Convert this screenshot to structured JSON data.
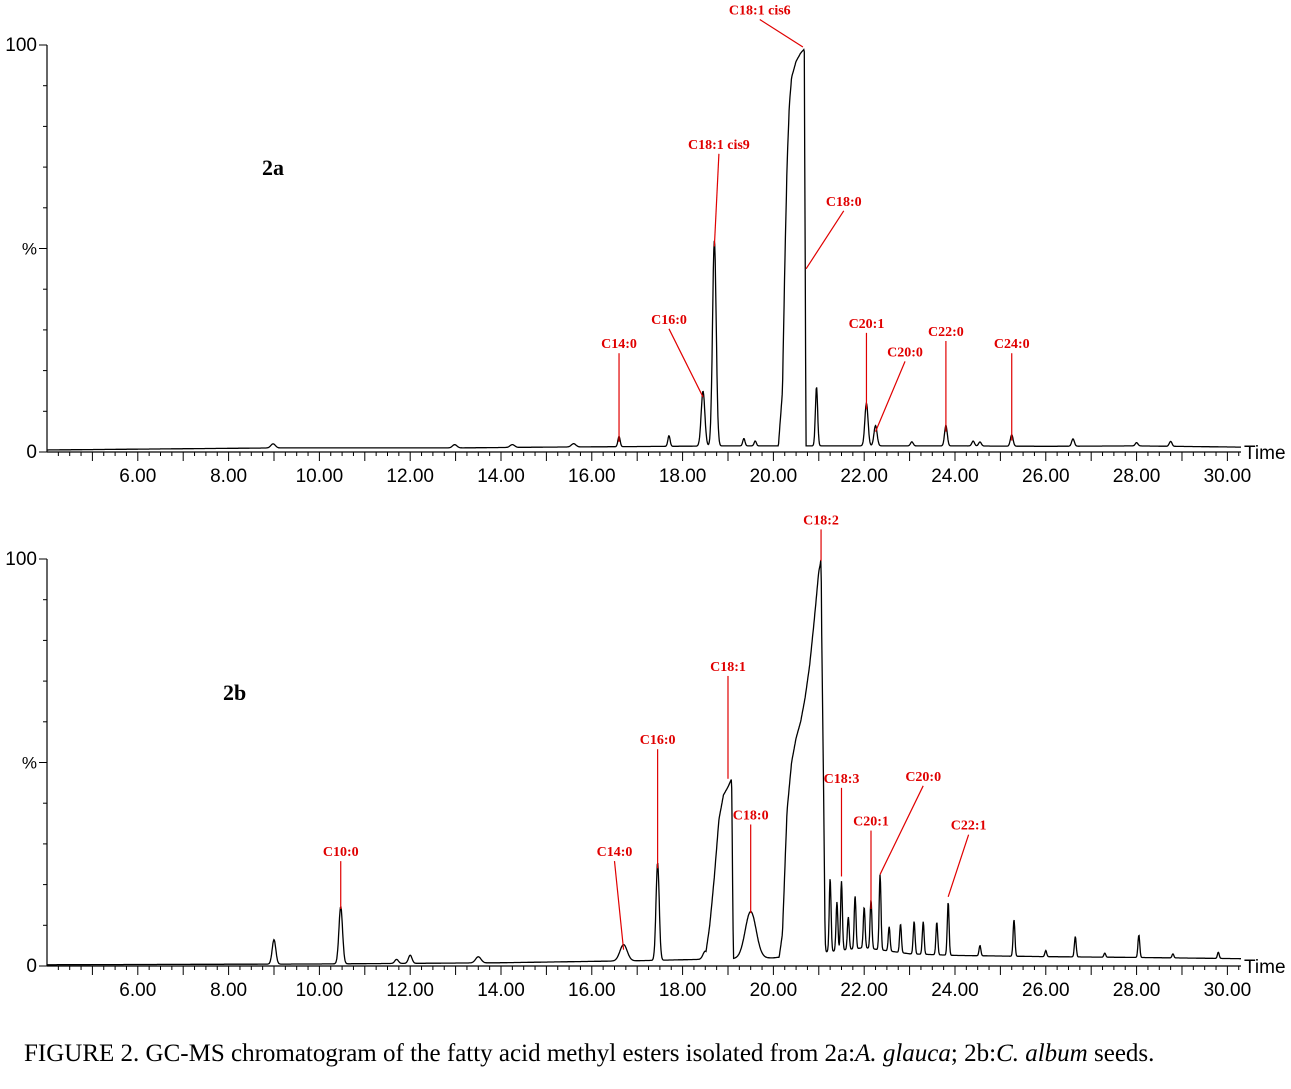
{
  "caption": {
    "prefix": "FIGURE 2. GC-MS chromatogram of the fatty acid methyl esters isolated from 2a:",
    "species_a": "A. glauca",
    "separator": "; 2b:",
    "species_b": "C. album",
    "suffix": " seeds."
  },
  "chart_data": [
    {
      "type": "line",
      "panel": "2a",
      "xlabel": "Time",
      "ylabel": "%",
      "xlim": [
        4.0,
        30.3
      ],
      "ylim": [
        0,
        100
      ],
      "y_ticks": [
        "0",
        "%",
        "100"
      ],
      "x_ticks": [
        "6.00",
        "8.00",
        "10.00",
        "12.00",
        "14.00",
        "16.00",
        "18.00",
        "20.00",
        "22.00",
        "24.00",
        "26.00",
        "28.00",
        "30.00"
      ],
      "baseline": [
        [
          4.0,
          0.5
        ],
        [
          9.0,
          1.0
        ],
        [
          13.0,
          1.0
        ],
        [
          15.0,
          1.2
        ],
        [
          16.5,
          1.3
        ],
        [
          19.0,
          1.5
        ],
        [
          21.5,
          1.5
        ],
        [
          24.0,
          1.5
        ],
        [
          26.0,
          1.4
        ],
        [
          28.0,
          1.5
        ],
        [
          30.3,
          1.2
        ]
      ],
      "peaks": [
        {
          "t": 8.98,
          "h": 1.0,
          "w": 0.05
        },
        {
          "t": 12.98,
          "h": 0.8,
          "w": 0.05
        },
        {
          "t": 14.25,
          "h": 0.7,
          "w": 0.05
        },
        {
          "t": 15.6,
          "h": 0.8,
          "w": 0.05
        },
        {
          "t": 16.6,
          "h": 2.5,
          "w": 0.025
        },
        {
          "t": 17.7,
          "h": 2.6,
          "w": 0.025
        },
        {
          "t": 18.45,
          "h": 13.5,
          "w": 0.04
        },
        {
          "t": 18.7,
          "h": 50.5,
          "w": 0.04
        },
        {
          "t": 19.35,
          "h": 1.8,
          "w": 0.025
        },
        {
          "t": 19.6,
          "h": 1.2,
          "w": 0.025
        },
        {
          "t": 20.95,
          "h": 14.5,
          "w": 0.025
        },
        {
          "t": 22.05,
          "h": 10.5,
          "w": 0.035
        },
        {
          "t": 22.25,
          "h": 5.0,
          "w": 0.035
        },
        {
          "t": 23.05,
          "h": 1.0,
          "w": 0.03
        },
        {
          "t": 23.8,
          "h": 5.0,
          "w": 0.03
        },
        {
          "t": 24.4,
          "h": 1.2,
          "w": 0.03
        },
        {
          "t": 24.55,
          "h": 1.0,
          "w": 0.03
        },
        {
          "t": 25.25,
          "h": 2.8,
          "w": 0.03
        },
        {
          "t": 26.6,
          "h": 1.8,
          "w": 0.03
        },
        {
          "t": 28.0,
          "h": 0.8,
          "w": 0.03
        },
        {
          "t": 28.75,
          "h": 1.2,
          "w": 0.03
        }
      ],
      "broad_peaks": [
        {
          "points": [
            [
              20.1,
              0
            ],
            [
              20.2,
              15
            ],
            [
              20.25,
              45
            ],
            [
              20.3,
              70
            ],
            [
              20.35,
              85
            ],
            [
              20.4,
              92
            ],
            [
              20.5,
              96
            ],
            [
              20.6,
              98
            ],
            [
              20.68,
              99
            ],
            [
              20.72,
              0
            ]
          ]
        }
      ],
      "annotations": [
        {
          "label": "C14:0",
          "t": 16.6,
          "y": 2.5,
          "label_t": 16.6,
          "label_y": 25.5
        },
        {
          "label": "C16:0",
          "t": 18.45,
          "y": 13.5,
          "label_t": 17.7,
          "label_y": 31.5
        },
        {
          "label": "C18:1 cis9",
          "t": 18.7,
          "y": 50.5,
          "label_t": 18.8,
          "label_y": 74.5
        },
        {
          "label": "C18:1 cis6",
          "t": 20.65,
          "y": 99.5,
          "label_t": 19.7,
          "label_y": 107.5
        },
        {
          "label": "C18:0",
          "t": 20.72,
          "y": 45,
          "label_t": 21.55,
          "label_y": 60.5
        },
        {
          "label": "C20:1",
          "t": 22.05,
          "y": 10.5,
          "label_t": 22.05,
          "label_y": 30.5
        },
        {
          "label": "C20:0",
          "t": 22.25,
          "y": 5.0,
          "label_t": 22.9,
          "label_y": 23.5
        },
        {
          "label": "C22:0",
          "t": 23.8,
          "y": 5.0,
          "label_t": 23.8,
          "label_y": 28.5
        },
        {
          "label": "C24:0",
          "t": 25.25,
          "y": 2.8,
          "label_t": 25.25,
          "label_y": 25.5
        }
      ]
    },
    {
      "type": "line",
      "panel": "2b",
      "xlabel": "Time",
      "ylabel": "%",
      "xlim": [
        4.0,
        30.3
      ],
      "ylim": [
        0,
        100
      ],
      "y_ticks": [
        "0",
        "%",
        "100"
      ],
      "x_ticks": [
        "6.00",
        "8.00",
        "10.00",
        "12.00",
        "14.00",
        "16.00",
        "18.00",
        "20.00",
        "22.00",
        "24.00",
        "26.00",
        "28.00",
        "30.00"
      ],
      "baseline": [
        [
          4.0,
          0.3
        ],
        [
          10.0,
          0.5
        ],
        [
          14.0,
          0.8
        ],
        [
          17.0,
          1.3
        ],
        [
          20.0,
          2.0
        ],
        [
          22.0,
          4.5
        ],
        [
          23.0,
          3.0
        ],
        [
          24.0,
          2.6
        ],
        [
          26.0,
          2.3
        ],
        [
          28.0,
          2.1
        ],
        [
          30.3,
          1.8
        ]
      ],
      "peaks": [
        {
          "t": 9.0,
          "h": 6.0,
          "w": 0.04
        },
        {
          "t": 10.47,
          "h": 14.0,
          "w": 0.04
        },
        {
          "t": 11.7,
          "h": 1.0,
          "w": 0.04
        },
        {
          "t": 12.0,
          "h": 2.0,
          "w": 0.04
        },
        {
          "t": 13.5,
          "h": 1.5,
          "w": 0.06
        },
        {
          "t": 16.7,
          "h": 4.0,
          "w": 0.08
        },
        {
          "t": 17.45,
          "h": 24.0,
          "w": 0.035
        },
        {
          "t": 18.5,
          "h": 2.0,
          "w": 0.05
        },
        {
          "t": 19.5,
          "h": 11.5,
          "w": 0.12
        },
        {
          "t": 21.1,
          "h": 26.0,
          "w": 0.02
        },
        {
          "t": 21.25,
          "h": 18.0,
          "w": 0.02
        },
        {
          "t": 21.4,
          "h": 12.0,
          "w": 0.02
        },
        {
          "t": 21.5,
          "h": 17.0,
          "w": 0.02
        },
        {
          "t": 21.65,
          "h": 8.0,
          "w": 0.02
        },
        {
          "t": 21.8,
          "h": 13.0,
          "w": 0.02
        },
        {
          "t": 22.0,
          "h": 10.0,
          "w": 0.02
        },
        {
          "t": 22.15,
          "h": 12.0,
          "w": 0.02
        },
        {
          "t": 22.35,
          "h": 18.5,
          "w": 0.02
        },
        {
          "t": 22.55,
          "h": 6.0,
          "w": 0.02
        },
        {
          "t": 22.8,
          "h": 7.0,
          "w": 0.02
        },
        {
          "t": 23.1,
          "h": 8.0,
          "w": 0.02
        },
        {
          "t": 23.3,
          "h": 8.0,
          "w": 0.02
        },
        {
          "t": 23.6,
          "h": 8.0,
          "w": 0.02
        },
        {
          "t": 23.85,
          "h": 13.0,
          "w": 0.02
        },
        {
          "t": 24.55,
          "h": 2.5,
          "w": 0.02
        },
        {
          "t": 25.3,
          "h": 9.0,
          "w": 0.02
        },
        {
          "t": 26.0,
          "h": 1.5,
          "w": 0.02
        },
        {
          "t": 26.65,
          "h": 5.0,
          "w": 0.02
        },
        {
          "t": 27.3,
          "h": 1.0,
          "w": 0.02
        },
        {
          "t": 28.05,
          "h": 5.5,
          "w": 0.02
        },
        {
          "t": 28.8,
          "h": 1.0,
          "w": 0.02
        },
        {
          "t": 29.8,
          "h": 1.5,
          "w": 0.02
        }
      ],
      "broad_peaks": [
        {
          "points": [
            [
              18.5,
              0
            ],
            [
              18.6,
              10
            ],
            [
              18.7,
              22
            ],
            [
              18.8,
              36
            ],
            [
              18.9,
              42
            ],
            [
              19.0,
              44
            ],
            [
              19.08,
              46
            ],
            [
              19.12,
              0
            ]
          ]
        },
        {
          "points": [
            [
              20.1,
              0
            ],
            [
              20.2,
              8
            ],
            [
              20.3,
              38
            ],
            [
              20.4,
              50
            ],
            [
              20.5,
              56
            ],
            [
              20.6,
              60
            ],
            [
              20.7,
              66
            ],
            [
              20.8,
              74
            ],
            [
              20.9,
              85
            ],
            [
              21.0,
              97
            ],
            [
              21.05,
              99.5
            ],
            [
              21.1,
              20
            ],
            [
              21.15,
              0
            ]
          ]
        }
      ],
      "annotations": [
        {
          "label": "C10:0",
          "t": 10.47,
          "y": 14.0,
          "label_t": 10.47,
          "label_y": 27.0
        },
        {
          "label": "C14:0",
          "t": 16.7,
          "y": 4.0,
          "label_t": 16.5,
          "label_y": 27.0
        },
        {
          "label": "C16:0",
          "t": 17.45,
          "y": 24.0,
          "label_t": 17.45,
          "label_y": 54.5
        },
        {
          "label": "C18:1",
          "t": 19.0,
          "y": 46.0,
          "label_t": 19.0,
          "label_y": 72.5
        },
        {
          "label": "C18:0",
          "t": 19.5,
          "y": 13.0,
          "label_t": 19.5,
          "label_y": 36.0
        },
        {
          "label": "C18:2",
          "t": 21.05,
          "y": 99.5,
          "label_t": 21.05,
          "label_y": 108.5
        },
        {
          "label": "C18:3",
          "t": 21.5,
          "y": 22.0,
          "label_t": 21.5,
          "label_y": 45.0
        },
        {
          "label": "C20:1",
          "t": 22.15,
          "y": 14.0,
          "label_t": 22.15,
          "label_y": 34.5
        },
        {
          "label": "C20:0",
          "t": 22.35,
          "y": 22.5,
          "label_t": 23.3,
          "label_y": 45.5
        },
        {
          "label": "C22:1",
          "t": 23.85,
          "y": 17.0,
          "label_t": 24.3,
          "label_y": 33.5
        }
      ]
    }
  ]
}
